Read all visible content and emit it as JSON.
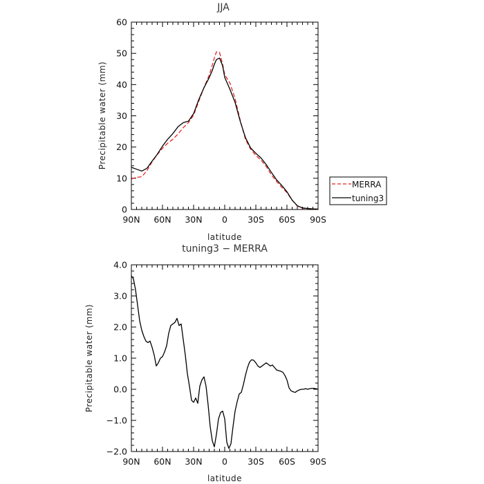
{
  "chart_data": [
    {
      "type": "line",
      "title": "JJA",
      "xlabel": "latitude",
      "ylabel": "Precipitable water (mm)",
      "xlim": [
        90,
        -90
      ],
      "ylim": [
        0,
        60
      ],
      "x_ticks": [
        90,
        60,
        30,
        0,
        -30,
        -60,
        -90
      ],
      "x_tick_labels": [
        "90N",
        "60N",
        "30N",
        "0",
        "30S",
        "60S",
        "90S"
      ],
      "y_ticks": [
        0,
        10,
        20,
        30,
        40,
        50,
        60
      ],
      "y_tick_labels": [
        "0",
        "10",
        "20",
        "30",
        "40",
        "50",
        "60"
      ],
      "legend": {
        "placement": "right",
        "entries": [
          "MERRA",
          "tuning3"
        ]
      },
      "series": [
        {
          "name": "MERRA",
          "color": "#e8231f",
          "dashed": true,
          "x": [
            90,
            85,
            80,
            75,
            70,
            65,
            60,
            55,
            50,
            45,
            40,
            35,
            30,
            25,
            20,
            15,
            12,
            10,
            8,
            5,
            2,
            0,
            -5,
            -10,
            -15,
            -20,
            -25,
            -30,
            -35,
            -40,
            -45,
            -50,
            -55,
            -60,
            -65,
            -70,
            -75,
            -80,
            -85,
            -90
          ],
          "y": [
            9.8,
            10.3,
            10.5,
            12.4,
            15.3,
            17.6,
            19.6,
            21.2,
            22.5,
            24.2,
            26.2,
            27.8,
            30.2,
            34.7,
            39.0,
            43.0,
            46.2,
            48.5,
            50.5,
            50.3,
            46.5,
            43.2,
            40.5,
            35.5,
            28.5,
            22.5,
            19.3,
            17.3,
            15.8,
            13.8,
            11.1,
            9.0,
            7.1,
            5.4,
            3.0,
            1.1,
            0.4,
            0.3,
            0.2,
            0.1
          ]
        },
        {
          "name": "tuning3",
          "color": "#000000",
          "dashed": false,
          "x": [
            90,
            85,
            80,
            75,
            70,
            65,
            60,
            55,
            50,
            45,
            40,
            35,
            30,
            25,
            20,
            15,
            12,
            10,
            8,
            5,
            2,
            0,
            -5,
            -10,
            -15,
            -20,
            -25,
            -30,
            -35,
            -40,
            -45,
            -50,
            -55,
            -60,
            -65,
            -70,
            -75,
            -80,
            -85,
            -90
          ],
          "y": [
            13.5,
            12.9,
            12.3,
            13.2,
            15.5,
            17.7,
            20.3,
            22.5,
            24.3,
            26.5,
            27.8,
            28.3,
            30.7,
            35.2,
            39.0,
            42.2,
            44.5,
            46.5,
            48.0,
            48.5,
            46.0,
            42.3,
            38.5,
            34.3,
            28.2,
            23.0,
            19.7,
            18.0,
            16.5,
            14.4,
            11.9,
            9.5,
            7.7,
            5.7,
            3.0,
            1.2,
            0.5,
            0.3,
            0.2,
            0.1
          ]
        }
      ]
    },
    {
      "type": "line",
      "title": "tuning3 − MERRA",
      "xlabel": "latitude",
      "ylabel": "Precipitable water (mm)",
      "xlim": [
        90,
        -90
      ],
      "ylim": [
        -2.0,
        4.0
      ],
      "x_ticks": [
        90,
        60,
        30,
        0,
        -30,
        -60,
        -90
      ],
      "x_tick_labels": [
        "90N",
        "60N",
        "30N",
        "0",
        "30S",
        "60S",
        "90S"
      ],
      "y_ticks": [
        -2.0,
        -1.0,
        0.0,
        1.0,
        2.0,
        3.0,
        4.0
      ],
      "y_tick_labels": [
        "−2.0",
        "−1.0",
        "0.0",
        "1.0",
        "2.0",
        "3.0",
        "4.0"
      ],
      "series": [
        {
          "color": "#000000",
          "dashed": false,
          "x": [
            90,
            88,
            86,
            84,
            82,
            80,
            78,
            76,
            74,
            72,
            70,
            68,
            66,
            64,
            62,
            60,
            58,
            56,
            54,
            52,
            50,
            48,
            46,
            44,
            42,
            40,
            38,
            36,
            34,
            32,
            30,
            28,
            26,
            24,
            22,
            20,
            18,
            16,
            14,
            12,
            10,
            8,
            6,
            4,
            2,
            0,
            -2,
            -4,
            -6,
            -8,
            -10,
            -12,
            -14,
            -16,
            -18,
            -20,
            -22,
            -24,
            -26,
            -28,
            -30,
            -32,
            -34,
            -36,
            -38,
            -40,
            -42,
            -44,
            -46,
            -48,
            -50,
            -52,
            -54,
            -56,
            -58,
            -60,
            -62,
            -64,
            -66,
            -68,
            -70,
            -72,
            -74,
            -76,
            -78,
            -80,
            -82,
            -84,
            -86,
            -88,
            -90
          ],
          "y": [
            3.65,
            3.55,
            3.2,
            2.7,
            2.2,
            1.9,
            1.7,
            1.55,
            1.5,
            1.55,
            1.35,
            1.1,
            0.75,
            0.85,
            1.0,
            1.05,
            1.2,
            1.4,
            1.8,
            2.05,
            2.1,
            2.15,
            2.28,
            2.05,
            2.1,
            1.6,
            1.1,
            0.5,
            0.1,
            -0.35,
            -0.42,
            -0.28,
            -0.45,
            0.1,
            0.3,
            0.4,
            0.1,
            -0.5,
            -1.2,
            -1.65,
            -1.85,
            -1.45,
            -0.95,
            -0.75,
            -0.7,
            -0.95,
            -1.7,
            -1.9,
            -1.75,
            -1.2,
            -0.7,
            -0.4,
            -0.15,
            -0.1,
            0.15,
            0.45,
            0.7,
            0.88,
            0.95,
            0.93,
            0.85,
            0.75,
            0.7,
            0.75,
            0.8,
            0.85,
            0.8,
            0.75,
            0.78,
            0.7,
            0.62,
            0.6,
            0.58,
            0.55,
            0.45,
            0.3,
            0.05,
            -0.05,
            -0.08,
            -0.1,
            -0.05,
            -0.02,
            0.0,
            0.0,
            0.02,
            0.0,
            0.02,
            0.03,
            0.03,
            0.02,
            0.0
          ]
        }
      ]
    }
  ]
}
